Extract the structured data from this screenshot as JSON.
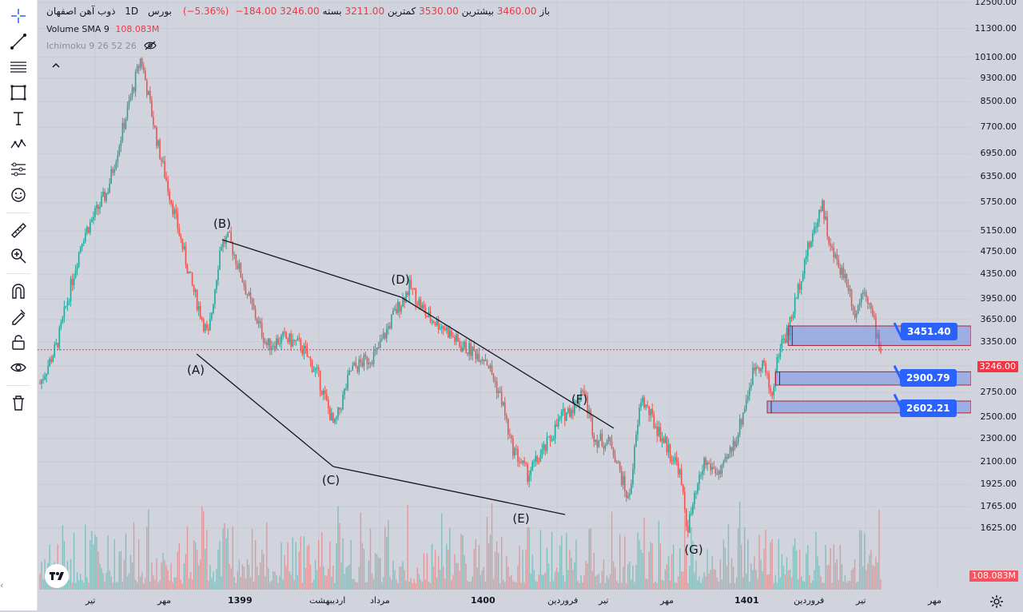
{
  "header": {
    "symbol": "ذوب آهن اصفهان",
    "interval": "1D",
    "exchange": "بورس",
    "open_label": "باز",
    "open": "3460.00",
    "high_label": "بیشترین",
    "high": "3530.00",
    "low_label": "کمترین",
    "low": "3211.00",
    "close_label": "بسته",
    "close": "3246.00",
    "change": "−184.00",
    "change_pct": "(−5.36%)"
  },
  "volume_indicator": {
    "label": "Volume SMA 9",
    "value": "108.083M"
  },
  "ichimoku_indicator": {
    "label": "Ichimoku 9 26 52 26"
  },
  "colors": {
    "up": "#26a69a",
    "down": "#ef5350",
    "accent": "#2962ff",
    "background": "#d1d4dc",
    "zone_fill": "#b2c3f2",
    "zone_border": "#b22234"
  },
  "icons": {
    "toolbar": [
      "crosshair-icon",
      "trendline-icon",
      "fib-icon",
      "rectangle-icon",
      "text-icon",
      "pattern-icon",
      "prediction-icon",
      "emoji-icon",
      "ruler-icon",
      "zoom-icon",
      "magnet-icon",
      "lock-drawing-icon",
      "lock-icon",
      "eye-icon",
      "trash-icon"
    ],
    "logo": "tradingview-logo",
    "settings": "gear-icon",
    "eye_hidden": "eye-off-icon",
    "collapse": "chevron-up-icon"
  },
  "callouts": {
    "zone1": "3451.40",
    "zone2": "2900.79",
    "zone3": "2602.21"
  },
  "price_tags": {
    "last_price": "3246.00",
    "volume": "108.083M"
  },
  "chart_data": {
    "type": "candlestick",
    "y_scale": "log",
    "ylim": [
      1480,
      12500
    ],
    "y_ticks": [
      "12500.00",
      "11300.00",
      "10100.00",
      "9300.00",
      "8500.00",
      "7700.00",
      "6950.00",
      "6350.00",
      "5750.00",
      "5150.00",
      "4750.00",
      "4350.00",
      "3950.00",
      "3650.00",
      "3350.00",
      "3050.00",
      "2750.00",
      "2500.00",
      "2300.00",
      "2100.00",
      "1925.00",
      "1765.00",
      "1625.00"
    ],
    "x_ticks": [
      "تیر",
      "مهر",
      "1399",
      "اردیبهشت",
      "مرداد",
      "1400",
      "فروردین",
      "تیر",
      "مهر",
      "1401",
      "فروردین",
      "تیر",
      "مهر"
    ],
    "series": [
      {
        "name": "price",
        "path_points": [
          {
            "t": 0.0,
            "price": 2850
          },
          {
            "t": 0.02,
            "price": 3300
          },
          {
            "t": 0.05,
            "price": 5000
          },
          {
            "t": 0.08,
            "price": 6000
          },
          {
            "t": 0.1,
            "price": 7800
          },
          {
            "t": 0.12,
            "price": 10100
          },
          {
            "t": 0.14,
            "price": 7200
          },
          {
            "t": 0.16,
            "price": 5500
          },
          {
            "t": 0.18,
            "price": 4200
          },
          {
            "t": 0.2,
            "price": 3400
          },
          {
            "t": 0.215,
            "price": 4900
          },
          {
            "t": 0.225,
            "price": 5000
          },
          {
            "t": 0.25,
            "price": 3900
          },
          {
            "t": 0.27,
            "price": 3300
          },
          {
            "t": 0.29,
            "price": 3400
          },
          {
            "t": 0.31,
            "price": 3300
          },
          {
            "t": 0.33,
            "price": 2950
          },
          {
            "t": 0.35,
            "price": 2400
          },
          {
            "t": 0.37,
            "price": 3000
          },
          {
            "t": 0.4,
            "price": 3200
          },
          {
            "t": 0.42,
            "price": 3700
          },
          {
            "t": 0.44,
            "price": 4150
          },
          {
            "t": 0.46,
            "price": 3700
          },
          {
            "t": 0.48,
            "price": 3550
          },
          {
            "t": 0.5,
            "price": 3300
          },
          {
            "t": 0.53,
            "price": 3150
          },
          {
            "t": 0.55,
            "price": 2650
          },
          {
            "t": 0.56,
            "price": 2250
          },
          {
            "t": 0.58,
            "price": 2000
          },
          {
            "t": 0.6,
            "price": 2200
          },
          {
            "t": 0.62,
            "price": 2500
          },
          {
            "t": 0.64,
            "price": 2650
          },
          {
            "t": 0.645,
            "price": 2830
          },
          {
            "t": 0.66,
            "price": 2300
          },
          {
            "t": 0.68,
            "price": 2250
          },
          {
            "t": 0.7,
            "price": 1800
          },
          {
            "t": 0.715,
            "price": 2700
          },
          {
            "t": 0.73,
            "price": 2450
          },
          {
            "t": 0.76,
            "price": 2050
          },
          {
            "t": 0.77,
            "price": 1620
          },
          {
            "t": 0.79,
            "price": 2100
          },
          {
            "t": 0.81,
            "price": 2000
          },
          {
            "t": 0.83,
            "price": 2350
          },
          {
            "t": 0.85,
            "price": 3050
          },
          {
            "t": 0.86,
            "price": 3100
          },
          {
            "t": 0.87,
            "price": 2700
          },
          {
            "t": 0.88,
            "price": 3300
          },
          {
            "t": 0.89,
            "price": 3500
          },
          {
            "t": 0.9,
            "price": 4000
          },
          {
            "t": 0.91,
            "price": 4650
          },
          {
            "t": 0.92,
            "price": 5100
          },
          {
            "t": 0.93,
            "price": 5800
          },
          {
            "t": 0.94,
            "price": 4800
          },
          {
            "t": 0.96,
            "price": 4250
          },
          {
            "t": 0.97,
            "price": 3700
          },
          {
            "t": 0.98,
            "price": 4200
          },
          {
            "t": 1.0,
            "price": 3246
          }
        ]
      },
      {
        "name": "volume",
        "last": "108.083M"
      }
    ],
    "wave_points": [
      {
        "label": "(B)",
        "t": 0.2,
        "price": 5150
      },
      {
        "label": "(A)",
        "t": 0.17,
        "price": 3200
      },
      {
        "label": "(D)",
        "t": 0.42,
        "price": 4150
      },
      {
        "label": "(C)",
        "t": 0.33,
        "price": 2250
      },
      {
        "label": "(F)",
        "t": 0.62,
        "price": 2830
      },
      {
        "label": "(E)",
        "t": 0.57,
        "price": 1890
      },
      {
        "label": "(G)",
        "t": 0.74,
        "price": 1650
      }
    ],
    "zones": [
      {
        "low": 3300,
        "high": 3560,
        "callout": "3451.40"
      },
      {
        "low": 2830,
        "high": 2980,
        "callout": "2900.79"
      },
      {
        "low": 2540,
        "high": 2660,
        "callout": "2602.21"
      }
    ],
    "last_price": 3246,
    "grid": true
  }
}
